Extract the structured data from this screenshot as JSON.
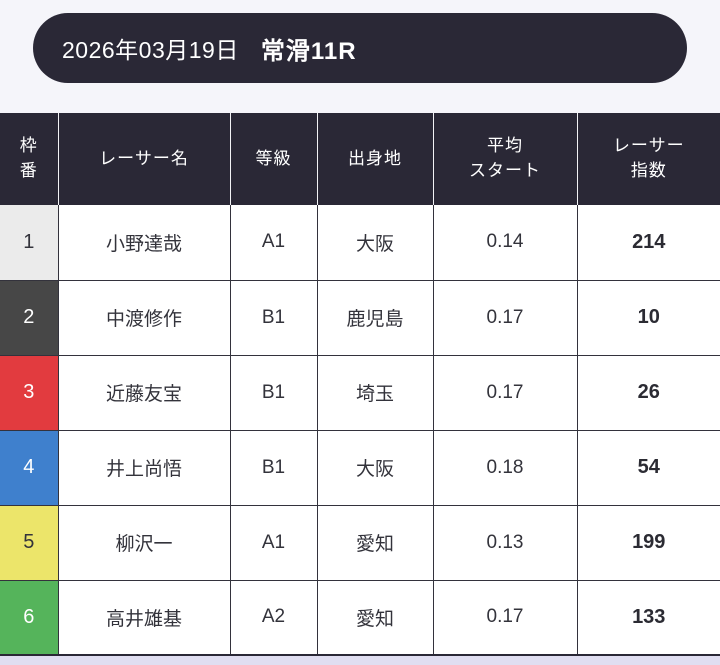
{
  "header": {
    "date": "2026年03月19日",
    "race": "常滑11R"
  },
  "table": {
    "columns": [
      {
        "label": "枠番",
        "line1": "枠",
        "line2": "番"
      },
      {
        "label": "レーサー名",
        "line1": "レーサー名",
        "line2": ""
      },
      {
        "label": "等級",
        "line1": "等級",
        "line2": ""
      },
      {
        "label": "出身地",
        "line1": "出身地",
        "line2": ""
      },
      {
        "label": "平均スタート",
        "line1": "平均",
        "line2": "スタート"
      },
      {
        "label": "レーサー指数",
        "line1": "レーサー",
        "line2": "指数"
      }
    ],
    "rows": [
      {
        "waku": "1",
        "name": "小野達哉",
        "grade": "A1",
        "origin": "大阪",
        "avg_start": "0.14",
        "index": "214",
        "waku_bg": "#ebebeb",
        "waku_color": "#33333b"
      },
      {
        "waku": "2",
        "name": "中渡修作",
        "grade": "B1",
        "origin": "鹿児島",
        "avg_start": "0.17",
        "index": "10",
        "waku_bg": "#474747",
        "waku_color": "#ffffff"
      },
      {
        "waku": "3",
        "name": "近藤友宝",
        "grade": "B1",
        "origin": "埼玉",
        "avg_start": "0.17",
        "index": "26",
        "waku_bg": "#e23b3f",
        "waku_color": "#ffffff"
      },
      {
        "waku": "4",
        "name": "井上尚悟",
        "grade": "B1",
        "origin": "大阪",
        "avg_start": "0.18",
        "index": "54",
        "waku_bg": "#3f80cd",
        "waku_color": "#ffffff"
      },
      {
        "waku": "5",
        "name": "柳沢一",
        "grade": "A1",
        "origin": "愛知",
        "avg_start": "0.13",
        "index": "199",
        "waku_bg": "#ece56a",
        "waku_color": "#33333b"
      },
      {
        "waku": "6",
        "name": "高井雄基",
        "grade": "A2",
        "origin": "愛知",
        "avg_start": "0.17",
        "index": "133",
        "waku_bg": "#55b45b",
        "waku_color": "#ffffff"
      }
    ]
  },
  "colors": {
    "banner_bg": "#2a2836",
    "table_header_bg": "#2a2836",
    "page_top_bg": "#f5f5fa",
    "page_bottom_bg": "#e0def1",
    "cell_border": "#33323c",
    "body_text": "#33333b"
  }
}
